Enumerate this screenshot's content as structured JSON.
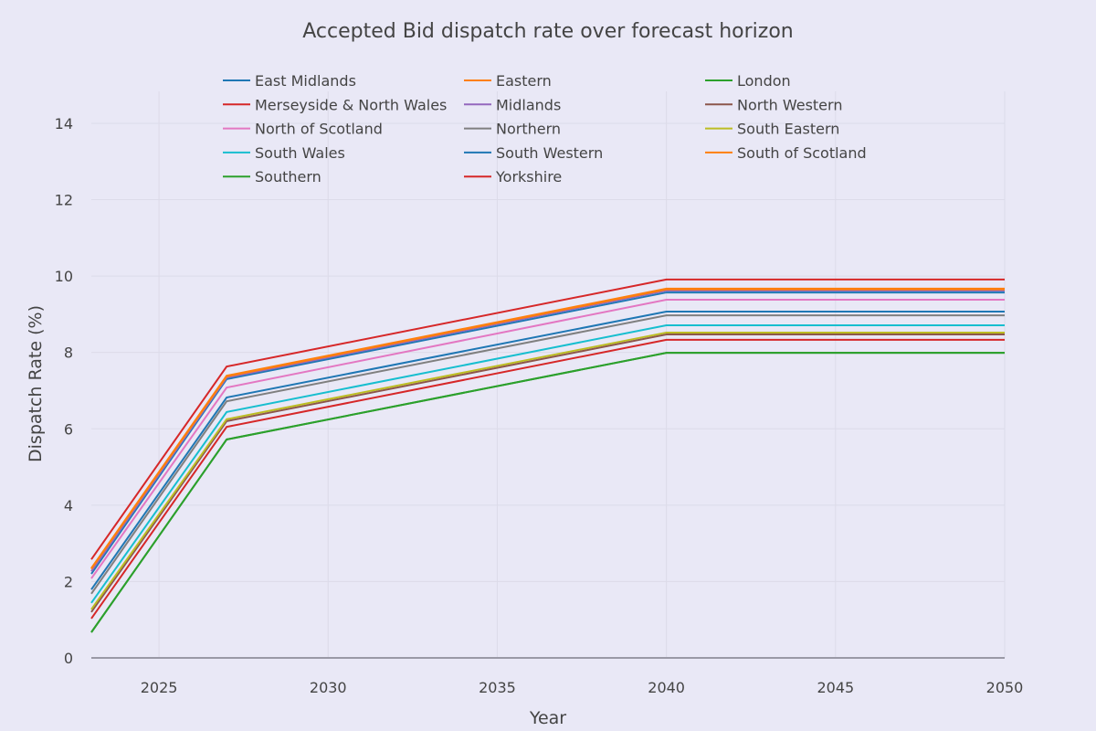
{
  "chart_data": {
    "type": "line",
    "title": "Accepted Bid dispatch rate over forecast horizon",
    "xlabel": "Year",
    "ylabel": "Dispatch Rate (%)",
    "xlim": [
      2023,
      2050
    ],
    "ylim": [
      0,
      14.8
    ],
    "xticks": [
      2025,
      2030,
      2035,
      2040,
      2045,
      2050
    ],
    "yticks": [
      0,
      2,
      4,
      6,
      8,
      10,
      12,
      14
    ],
    "grid": true,
    "legend": {
      "position": "top",
      "columns": 3
    },
    "x": [
      2023,
      2027,
      2040,
      2050
    ],
    "series": [
      {
        "name": "East Midlands",
        "color": "#1f77b4",
        "values": [
          2.2,
          7.3,
          9.57,
          9.57
        ]
      },
      {
        "name": "Eastern",
        "color": "#ff7f0e",
        "values": [
          2.35,
          7.39,
          9.67,
          9.67
        ]
      },
      {
        "name": "London",
        "color": "#2ca02c",
        "values": [
          0.67,
          5.72,
          7.99,
          7.99
        ]
      },
      {
        "name": "Merseyside & North Wales",
        "color": "#d62728",
        "values": [
          2.58,
          7.63,
          9.91,
          9.91
        ]
      },
      {
        "name": "Midlands",
        "color": "#9467bd",
        "values": [
          2.27,
          7.34,
          9.62,
          9.62
        ]
      },
      {
        "name": "North Western",
        "color": "#8c564b",
        "values": [
          1.2,
          6.2,
          8.47,
          8.47
        ]
      },
      {
        "name": "North of Scotland",
        "color": "#e377c2",
        "values": [
          2.08,
          7.08,
          9.38,
          9.38
        ]
      },
      {
        "name": "Northern",
        "color": "#7f7f7f",
        "values": [
          1.68,
          6.72,
          8.97,
          8.97
        ]
      },
      {
        "name": "South Eastern",
        "color": "#bcbd22",
        "values": [
          1.27,
          6.25,
          8.52,
          8.52
        ]
      },
      {
        "name": "South Wales",
        "color": "#17becf",
        "values": [
          1.44,
          6.44,
          8.71,
          8.71
        ]
      },
      {
        "name": "South Western",
        "color": "#1f77b4",
        "values": [
          1.79,
          6.82,
          9.07,
          9.07
        ]
      },
      {
        "name": "South of Scotland",
        "color": "#ff7f0e",
        "values": [
          2.33,
          7.37,
          9.65,
          9.65
        ]
      },
      {
        "name": "Southern",
        "color": "#2ca02c",
        "values": [
          0.67,
          5.72,
          7.99,
          7.99
        ]
      },
      {
        "name": "Yorkshire",
        "color": "#d62728",
        "values": [
          1.03,
          6.05,
          8.33,
          8.33
        ]
      }
    ]
  }
}
